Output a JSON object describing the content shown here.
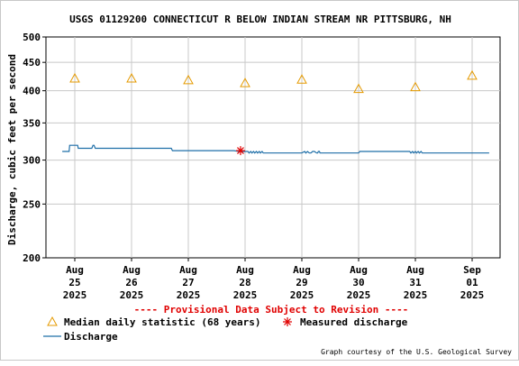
{
  "chart_data": {
    "type": "line",
    "title": "USGS 01129200 CONNECTICUT R BELOW INDIAN STREAM NR PITTSBURG, NH",
    "ylabel": "Discharge, cubic feet per second",
    "ylim": [
      200,
      500
    ],
    "y_scale": "log",
    "y_ticks": [
      200,
      250,
      300,
      350,
      400,
      450,
      500
    ],
    "grid": true,
    "x_range": [
      0,
      7.85
    ],
    "x_ticks": [
      {
        "x": 0,
        "month": "Aug",
        "day": "25",
        "year": "2025"
      },
      {
        "x": 1,
        "month": "Aug",
        "day": "26",
        "year": "2025"
      },
      {
        "x": 2,
        "month": "Aug",
        "day": "27",
        "year": "2025"
      },
      {
        "x": 3,
        "month": "Aug",
        "day": "28",
        "year": "2025"
      },
      {
        "x": 4,
        "month": "Aug",
        "day": "29",
        "year": "2025"
      },
      {
        "x": 5,
        "month": "Aug",
        "day": "30",
        "year": "2025"
      },
      {
        "x": 6,
        "month": "Aug",
        "day": "31",
        "year": "2025"
      },
      {
        "x": 7,
        "month": "Sep",
        "day": "01",
        "year": "2025"
      }
    ],
    "series": [
      {
        "name": "Discharge",
        "color": "#1f6fa8",
        "x": [
          -0.22,
          -0.1,
          -0.09,
          0.0,
          0.05,
          0.06,
          0.3,
          0.32,
          0.34,
          0.36,
          1.0,
          1.5,
          1.7,
          1.72,
          2.0,
          2.8,
          2.9,
          3.05,
          3.07,
          3.1,
          3.12,
          3.15,
          3.17,
          3.2,
          3.22,
          3.25,
          3.27,
          3.3,
          3.32,
          3.35,
          3.5,
          3.9,
          4.0,
          4.05,
          4.07,
          4.1,
          4.13,
          4.16,
          4.19,
          4.22,
          4.26,
          4.28,
          4.29,
          4.31,
          4.32,
          4.4,
          4.8,
          5.0,
          5.02,
          5.5,
          5.9,
          5.92,
          5.95,
          5.97,
          6.0,
          6.02,
          6.05,
          6.07,
          6.1,
          6.12,
          6.15,
          6.5,
          7.0,
          7.3
        ],
        "values": [
          311,
          311,
          319,
          319,
          319,
          315,
          315,
          319,
          319,
          315,
          315,
          315,
          315,
          312,
          312,
          312,
          311,
          311,
          309,
          311,
          309,
          311,
          309,
          311,
          309,
          311,
          309,
          311,
          309,
          309,
          309,
          309,
          309,
          311,
          309,
          311,
          309,
          309,
          311,
          311,
          309,
          309,
          311,
          311,
          309,
          309,
          309,
          309,
          311,
          311,
          311,
          309,
          311,
          309,
          311,
          309,
          311,
          309,
          311,
          309,
          309,
          309,
          309,
          309
        ]
      },
      {
        "name": "Median daily statistic (68 years)",
        "color": "#e59a00",
        "marker": "triangle",
        "x": [
          0.0,
          1.0,
          2.0,
          3.0,
          4.0,
          5.0,
          6.0,
          7.0
        ],
        "values": [
          421,
          421,
          418,
          413,
          419,
          403,
          406,
          426
        ]
      },
      {
        "name": "Measured discharge",
        "color": "#e00000",
        "marker": "asterisk",
        "x": [
          2.92
        ],
        "values": [
          312
        ]
      }
    ]
  },
  "provisional_text": "---- Provisional Data Subject to Revision ----",
  "legend": {
    "median": "Median daily statistic (68 years)",
    "measured": "Measured discharge",
    "discharge": "Discharge"
  },
  "courtesy": "Graph courtesy of the U.S. Geological Survey"
}
